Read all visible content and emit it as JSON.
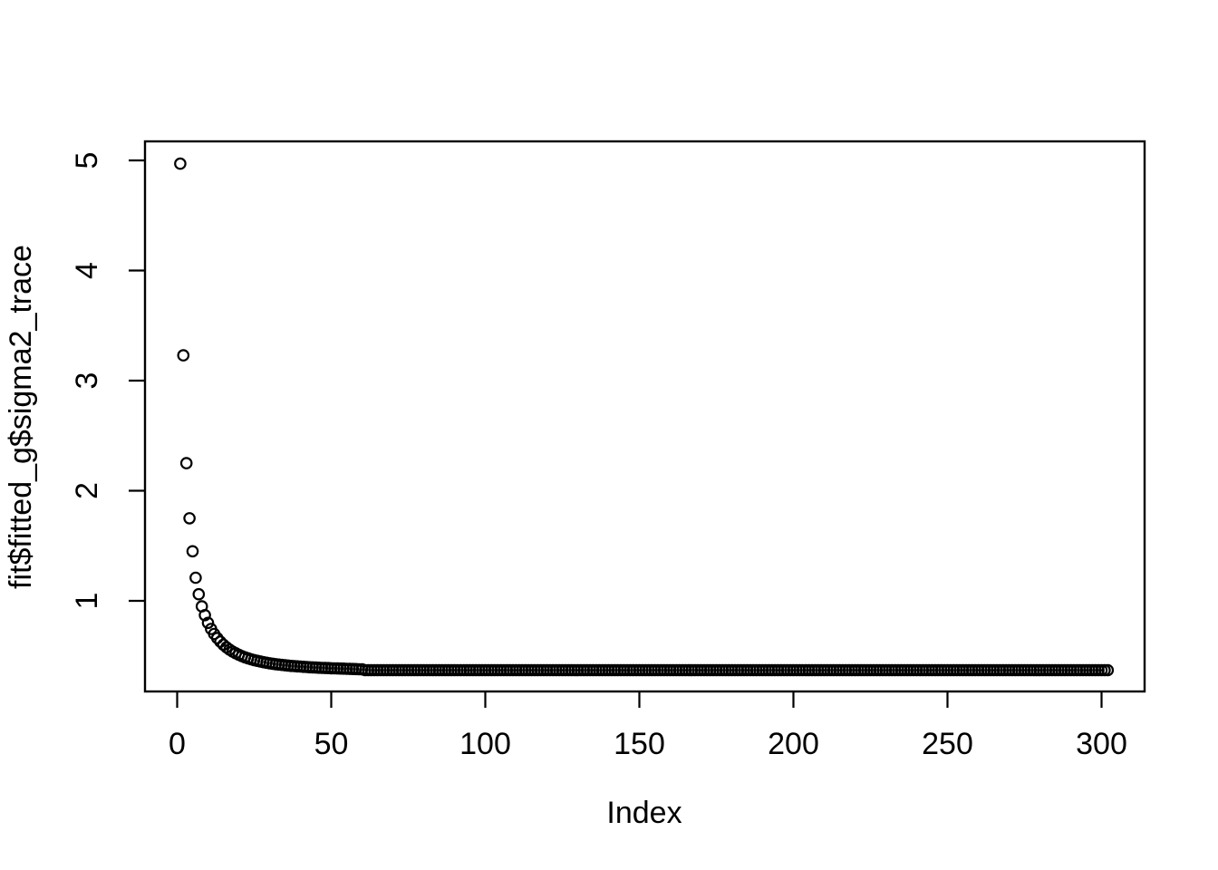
{
  "figure": {
    "background_color": "#ffffff",
    "foreground_color": "#000000"
  },
  "chart_data": {
    "type": "scatter",
    "title": "",
    "xlabel": "Index",
    "ylabel": "fit$fitted_g$sigma2_trace",
    "marker": "open-circle",
    "marker_color": "#000000",
    "grid": false,
    "legend": null,
    "x_ticks": [
      0,
      50,
      100,
      150,
      200,
      250,
      300
    ],
    "y_ticks": [
      1,
      2,
      3,
      4,
      5
    ],
    "xlim": [
      -11,
      314
    ],
    "ylim": [
      0.18,
      5.15
    ],
    "x_start": 1,
    "n_points": 302,
    "head_values": [
      4.97,
      3.23,
      2.25,
      1.75,
      1.45,
      1.21,
      1.06,
      0.95,
      0.87,
      0.8,
      0.745,
      0.7,
      0.662,
      0.63,
      0.602,
      0.578,
      0.557,
      0.539,
      0.524,
      0.51,
      0.498,
      0.487,
      0.478,
      0.469,
      0.462,
      0.455,
      0.449,
      0.443,
      0.438,
      0.433,
      0.429,
      0.425,
      0.421,
      0.418,
      0.415,
      0.412,
      0.409,
      0.407,
      0.405,
      0.403,
      0.401,
      0.399,
      0.397,
      0.396,
      0.394,
      0.393,
      0.391,
      0.39,
      0.389,
      0.388,
      0.387,
      0.386,
      0.385,
      0.384,
      0.383,
      0.382,
      0.381,
      0.38,
      0.379,
      0.378
    ],
    "tail": {
      "from_index": 61,
      "to_index": 302,
      "approx_value": 0.37
    }
  }
}
